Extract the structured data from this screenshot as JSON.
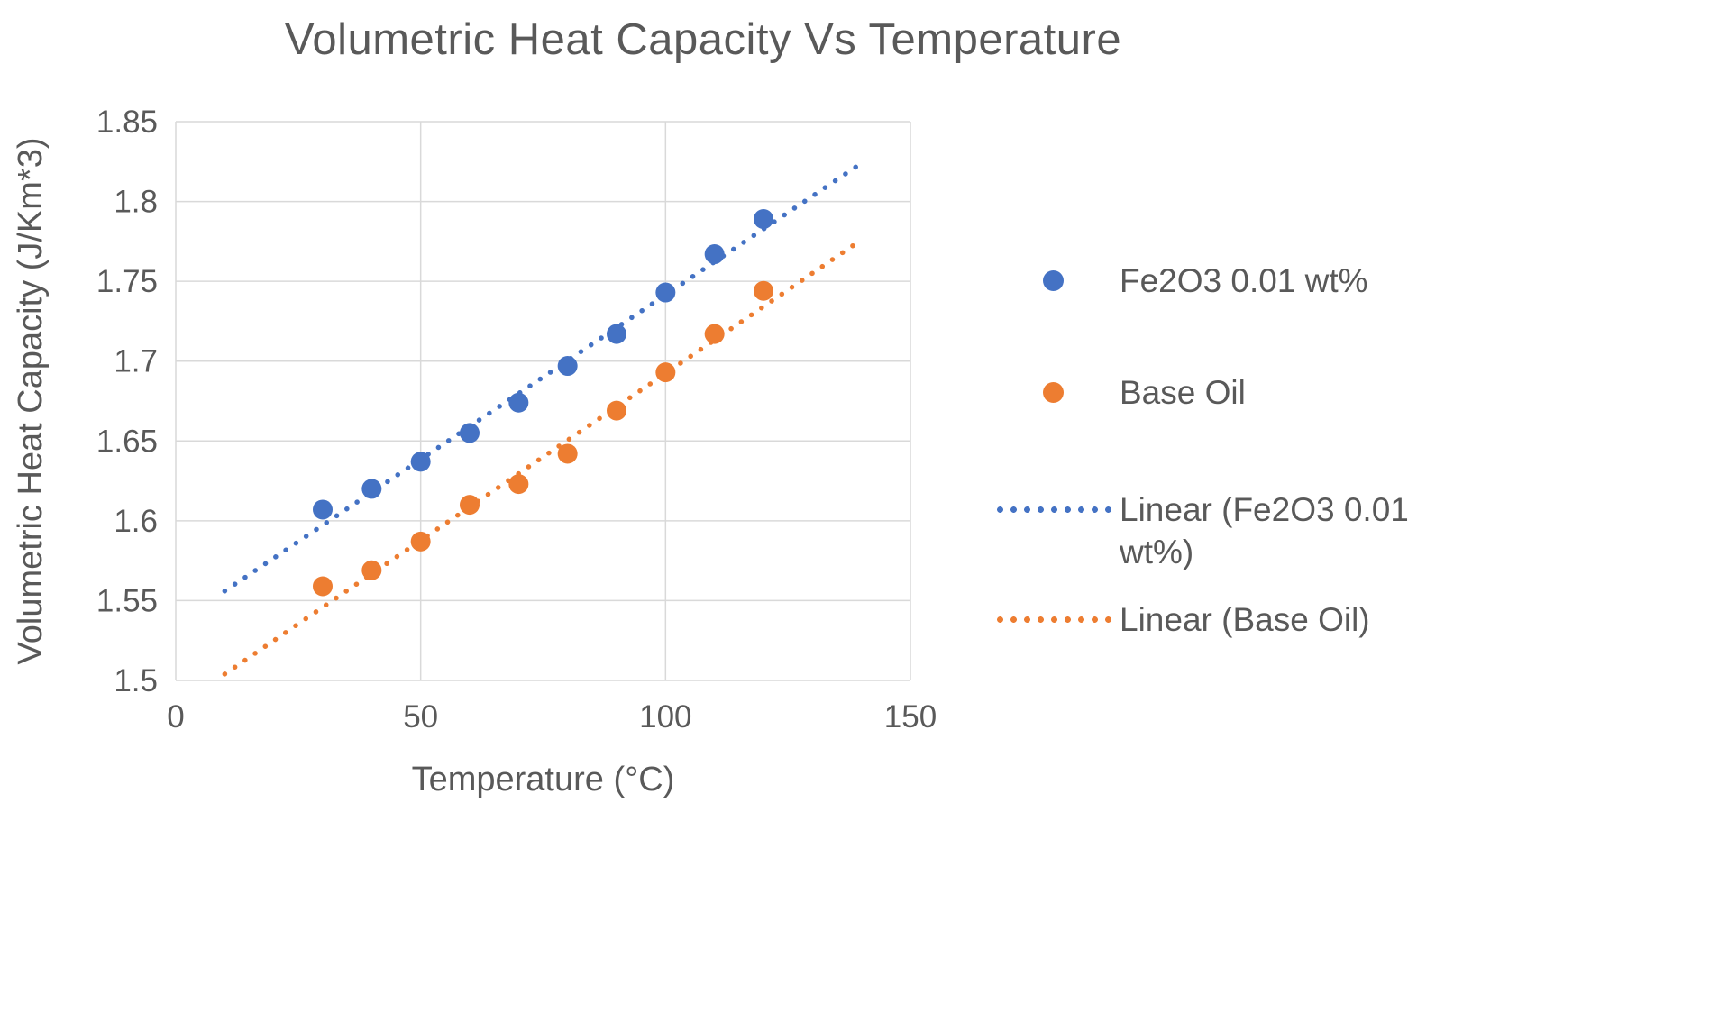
{
  "chart_data": {
    "type": "scatter",
    "title": "Volumetric Heat Capacity Vs Temperature",
    "xlabel": "Temperature (°C)",
    "ylabel": "Volumetric Heat Capacity (J/Km*3)",
    "xlim": [
      0,
      150
    ],
    "ylim": [
      1.5,
      1.85
    ],
    "xticks": [
      0,
      50,
      100,
      150
    ],
    "yticks": [
      1.5,
      1.55,
      1.6,
      1.65,
      1.7,
      1.75,
      1.8,
      1.85
    ],
    "grid": true,
    "legend_position": "right",
    "colors": {
      "grid": "#d9d9d9",
      "text": "#595959",
      "background": "#ffffff"
    },
    "series": [
      {
        "name": "Fe2O3 0.01 wt%",
        "color": "#4472c4",
        "marker": "circle",
        "x": [
          30,
          40,
          50,
          60,
          70,
          80,
          90,
          100,
          110,
          120
        ],
        "y": [
          1.607,
          1.62,
          1.637,
          1.655,
          1.674,
          1.697,
          1.717,
          1.743,
          1.767,
          1.789
        ]
      },
      {
        "name": "Base Oil",
        "color": "#ed7d31",
        "marker": "circle",
        "x": [
          30,
          40,
          50,
          60,
          70,
          80,
          90,
          100,
          110,
          120
        ],
        "y": [
          1.559,
          1.569,
          1.587,
          1.61,
          1.623,
          1.642,
          1.669,
          1.693,
          1.717,
          1.744
        ]
      }
    ],
    "trendlines": [
      {
        "name": "Linear (Fe2O3 0.01 wt%)",
        "color": "#4472c4",
        "style": "dotted",
        "x_range": [
          10,
          140
        ],
        "y_range": [
          1.556,
          1.824
        ]
      },
      {
        "name": "Linear (Base Oil)",
        "color": "#ed7d31",
        "style": "dotted",
        "x_range": [
          10,
          140
        ],
        "y_range": [
          1.504,
          1.776
        ]
      }
    ]
  }
}
